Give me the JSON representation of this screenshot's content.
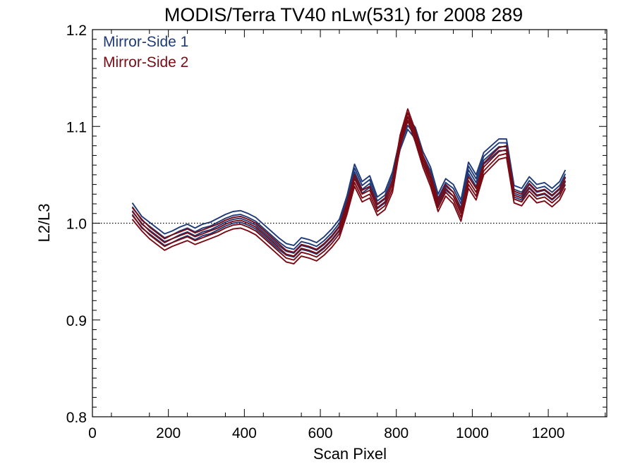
{
  "chart_data": {
    "type": "line",
    "title": "MODIS/Terra TV40 nLw(531) for 2008 289",
    "xlabel": "Scan Pixel",
    "ylabel": "L2/L3",
    "xlim": [
      0,
      1354
    ],
    "ylim": [
      0.8,
      1.2
    ],
    "xticks": [
      "0",
      "200",
      "400",
      "600",
      "800",
      "1000",
      "1200"
    ],
    "yticks": [
      "0.8",
      "0.9",
      "1.0",
      "1.1",
      "1.2"
    ],
    "reference_line": {
      "y": 1.0,
      "style": "dotted"
    },
    "legend_position": "top-left",
    "colors": {
      "Mirror-Side 1": "#1f3a78",
      "Mirror-Side 2": "#7a0a14"
    },
    "legend": [
      "Mirror-Side 1",
      "Mirror-Side 2"
    ],
    "x": [
      105,
      130,
      150,
      170,
      190,
      210,
      230,
      250,
      270,
      290,
      310,
      330,
      350,
      370,
      390,
      410,
      430,
      450,
      470,
      490,
      510,
      530,
      550,
      570,
      590,
      610,
      630,
      650,
      670,
      690,
      710,
      730,
      750,
      770,
      790,
      810,
      830,
      850,
      870,
      890,
      910,
      930,
      950,
      970,
      990,
      1010,
      1030,
      1050,
      1070,
      1090,
      1110,
      1130,
      1150,
      1170,
      1190,
      1210,
      1230,
      1245
    ],
    "series": [
      {
        "name": "Mirror-Side 1",
        "values": [
          1.021,
          1.007,
          1.001,
          0.995,
          0.989,
          0.992,
          0.996,
          0.999,
          0.995,
          0.999,
          1.001,
          1.005,
          1.009,
          1.012,
          1.013,
          1.01,
          1.006,
          0.999,
          0.992,
          0.985,
          0.979,
          0.977,
          0.985,
          0.983,
          0.98,
          0.986,
          0.994,
          1.004,
          1.028,
          1.061,
          1.043,
          1.049,
          1.027,
          1.033,
          1.053,
          1.088,
          1.109,
          1.099,
          1.074,
          1.058,
          1.03,
          1.046,
          1.04,
          1.024,
          1.063,
          1.05,
          1.073,
          1.08,
          1.087,
          1.087,
          1.039,
          1.036,
          1.048,
          1.04,
          1.042,
          1.036,
          1.043,
          1.055
        ]
      },
      {
        "name": "Mirror-Side 1",
        "values": [
          1.017,
          1.003,
          0.997,
          0.991,
          0.985,
          0.988,
          0.992,
          0.995,
          0.991,
          0.995,
          0.997,
          1.001,
          1.005,
          1.008,
          1.009,
          1.006,
          1.002,
          0.995,
          0.988,
          0.981,
          0.975,
          0.973,
          0.981,
          0.979,
          0.976,
          0.982,
          0.99,
          1.0,
          1.024,
          1.057,
          1.039,
          1.045,
          1.023,
          1.029,
          1.049,
          1.084,
          1.105,
          1.095,
          1.07,
          1.054,
          1.026,
          1.042,
          1.036,
          1.02,
          1.059,
          1.046,
          1.069,
          1.076,
          1.083,
          1.083,
          1.035,
          1.032,
          1.044,
          1.036,
          1.038,
          1.032,
          1.039,
          1.051
        ]
      },
      {
        "name": "Mirror-Side 1",
        "values": [
          1.013,
          0.999,
          0.993,
          0.987,
          0.981,
          0.984,
          0.988,
          0.991,
          0.987,
          0.991,
          0.993,
          0.997,
          1.001,
          1.004,
          1.005,
          1.002,
          0.998,
          0.991,
          0.984,
          0.977,
          0.971,
          0.969,
          0.977,
          0.975,
          0.972,
          0.978,
          0.986,
          0.996,
          1.02,
          1.053,
          1.035,
          1.041,
          1.019,
          1.025,
          1.045,
          1.08,
          1.101,
          1.091,
          1.066,
          1.05,
          1.022,
          1.038,
          1.032,
          1.016,
          1.055,
          1.042,
          1.065,
          1.072,
          1.079,
          1.079,
          1.031,
          1.028,
          1.04,
          1.032,
          1.034,
          1.028,
          1.035,
          1.047
        ]
      },
      {
        "name": "Mirror-Side 1",
        "values": [
          1.009,
          0.995,
          0.989,
          0.983,
          0.977,
          0.98,
          0.984,
          0.987,
          0.983,
          0.987,
          0.989,
          0.993,
          0.997,
          1.0,
          1.001,
          0.998,
          0.994,
          0.987,
          0.98,
          0.973,
          0.967,
          0.965,
          0.973,
          0.971,
          0.968,
          0.974,
          0.982,
          0.992,
          1.016,
          1.049,
          1.031,
          1.037,
          1.015,
          1.021,
          1.041,
          1.076,
          1.097,
          1.087,
          1.062,
          1.046,
          1.018,
          1.034,
          1.028,
          1.012,
          1.051,
          1.038,
          1.061,
          1.068,
          1.075,
          1.075,
          1.027,
          1.024,
          1.036,
          1.028,
          1.03,
          1.024,
          1.031,
          1.043
        ]
      },
      {
        "name": "Mirror-Side 2",
        "values": [
          1.016,
          1.004,
          0.996,
          0.99,
          0.984,
          0.988,
          0.991,
          0.994,
          0.99,
          0.993,
          0.996,
          0.999,
          1.003,
          1.006,
          1.007,
          1.004,
          1.0,
          0.993,
          0.986,
          0.979,
          0.972,
          0.97,
          0.978,
          0.976,
          0.973,
          0.979,
          0.987,
          0.997,
          1.021,
          1.05,
          1.034,
          1.038,
          1.02,
          1.026,
          1.044,
          1.091,
          1.118,
          1.096,
          1.07,
          1.05,
          1.024,
          1.04,
          1.032,
          1.014,
          1.048,
          1.036,
          1.062,
          1.07,
          1.078,
          1.08,
          1.033,
          1.03,
          1.041,
          1.033,
          1.035,
          1.029,
          1.036,
          1.048
        ]
      },
      {
        "name": "Mirror-Side 2",
        "values": [
          1.012,
          1.0,
          0.992,
          0.986,
          0.98,
          0.984,
          0.987,
          0.99,
          0.986,
          0.989,
          0.992,
          0.995,
          0.999,
          1.002,
          1.003,
          1.0,
          0.996,
          0.989,
          0.982,
          0.975,
          0.968,
          0.966,
          0.974,
          0.972,
          0.969,
          0.975,
          0.983,
          0.993,
          1.017,
          1.046,
          1.03,
          1.034,
          1.016,
          1.022,
          1.04,
          1.087,
          1.114,
          1.092,
          1.066,
          1.046,
          1.02,
          1.036,
          1.028,
          1.01,
          1.044,
          1.032,
          1.058,
          1.066,
          1.074,
          1.076,
          1.029,
          1.026,
          1.037,
          1.029,
          1.031,
          1.025,
          1.032,
          1.044
        ]
      },
      {
        "name": "Mirror-Side 2",
        "values": [
          1.008,
          0.996,
          0.988,
          0.982,
          0.976,
          0.98,
          0.983,
          0.986,
          0.982,
          0.985,
          0.988,
          0.991,
          0.995,
          0.998,
          0.999,
          0.996,
          0.992,
          0.985,
          0.978,
          0.971,
          0.964,
          0.962,
          0.97,
          0.968,
          0.965,
          0.971,
          0.979,
          0.989,
          1.013,
          1.042,
          1.026,
          1.03,
          1.012,
          1.018,
          1.036,
          1.083,
          1.11,
          1.088,
          1.062,
          1.042,
          1.016,
          1.032,
          1.024,
          1.006,
          1.04,
          1.028,
          1.054,
          1.062,
          1.07,
          1.072,
          1.025,
          1.022,
          1.033,
          1.025,
          1.027,
          1.021,
          1.028,
          1.04
        ]
      },
      {
        "name": "Mirror-Side 2",
        "values": [
          1.004,
          0.992,
          0.984,
          0.978,
          0.972,
          0.976,
          0.979,
          0.982,
          0.978,
          0.981,
          0.984,
          0.987,
          0.991,
          0.994,
          0.995,
          0.992,
          0.988,
          0.981,
          0.974,
          0.967,
          0.96,
          0.958,
          0.966,
          0.964,
          0.961,
          0.967,
          0.975,
          0.985,
          1.009,
          1.038,
          1.022,
          1.026,
          1.008,
          1.014,
          1.032,
          1.079,
          1.106,
          1.084,
          1.058,
          1.038,
          1.012,
          1.028,
          1.02,
          1.002,
          1.036,
          1.024,
          1.05,
          1.058,
          1.066,
          1.068,
          1.021,
          1.018,
          1.029,
          1.021,
          1.023,
          1.017,
          1.024,
          1.036
        ]
      }
    ]
  }
}
